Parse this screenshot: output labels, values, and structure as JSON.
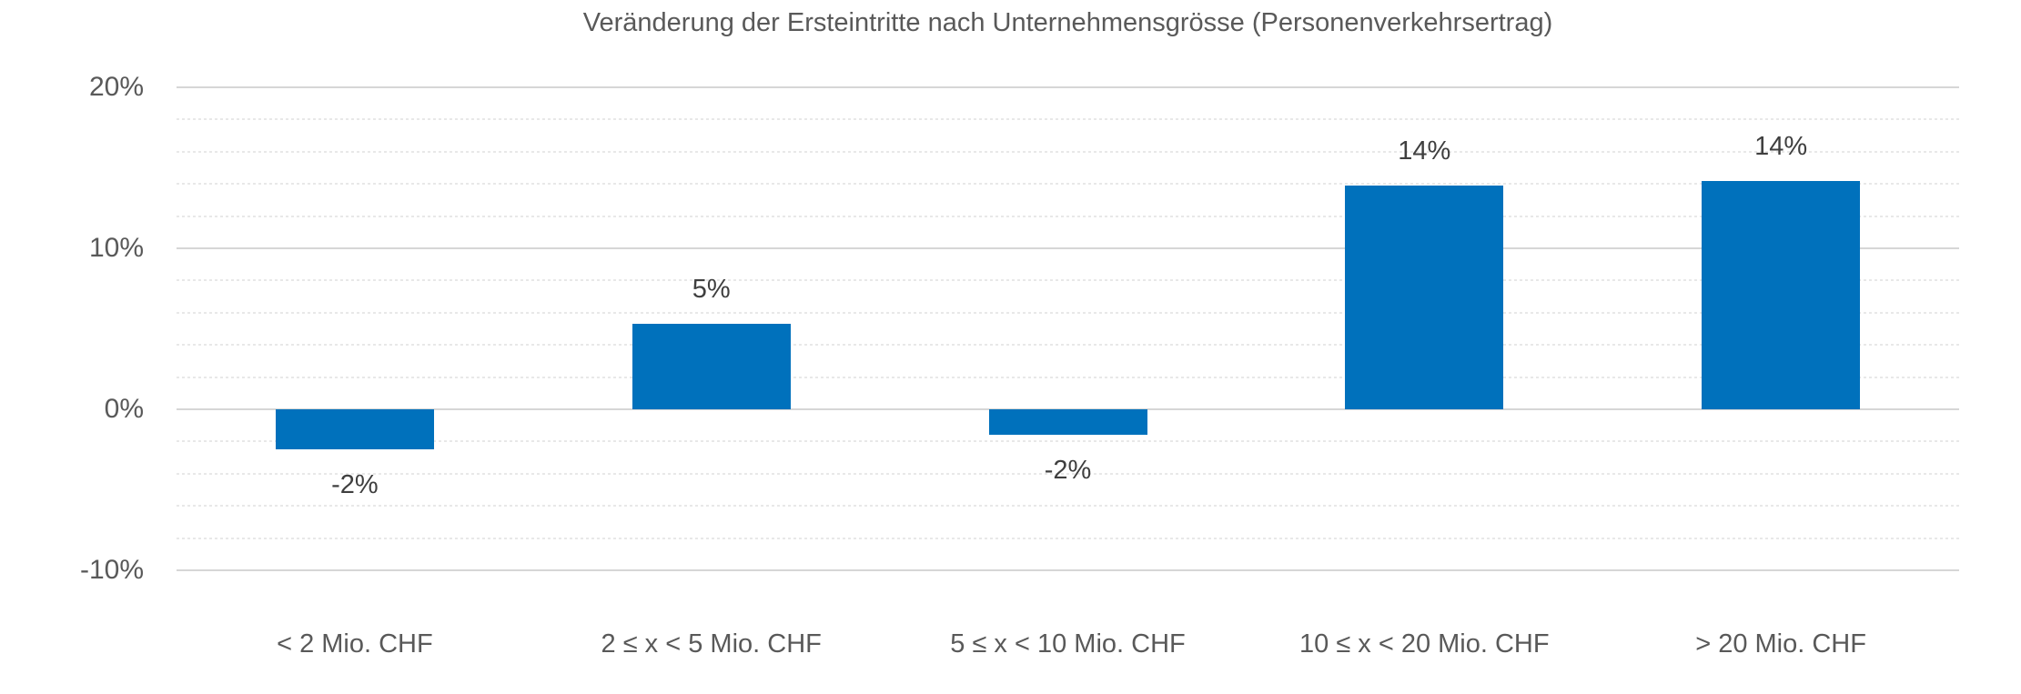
{
  "chart_data": {
    "type": "bar",
    "title": "Veränderung der Ersteintritte nach Unternehmensgrösse (Personenverkehrsertrag)",
    "categories": [
      "< 2 Mio. CHF",
      "2 ≤ x < 5 Mio. CHF",
      "5 ≤ x < 10 Mio. CHF",
      "10 ≤ x < 20 Mio. CHF",
      "> 20 Mio. CHF"
    ],
    "values": [
      -2,
      5,
      -2,
      14,
      14
    ],
    "values_estimated_precise": [
      -2.5,
      5.3,
      -1.6,
      13.9,
      14.2
    ],
    "data_labels": [
      "-2%",
      "5%",
      "-2%",
      "14%",
      "14%"
    ],
    "series_name": "Veränderung der Ersteintritte",
    "xlabel": "",
    "ylabel": "",
    "y_axis": {
      "ticks": [
        "20%",
        "10%",
        "0%",
        "-10%"
      ],
      "tick_values": [
        20,
        10,
        0,
        -10
      ],
      "min": -10,
      "max": 20,
      "major_unit": 10,
      "minor_unit": 2
    },
    "grid": {
      "major_horizontal": true,
      "minor_horizontal": true,
      "vertical": false
    },
    "legend": "none",
    "colors": {
      "bar": "#0071BC",
      "title_text": "#595959",
      "axis_text": "#595959",
      "data_label_text": "#3F3F3F",
      "major_gridline": "#D6D6D6",
      "minor_gridline": "#E8E8E8",
      "background": "#FFFFFF"
    }
  }
}
